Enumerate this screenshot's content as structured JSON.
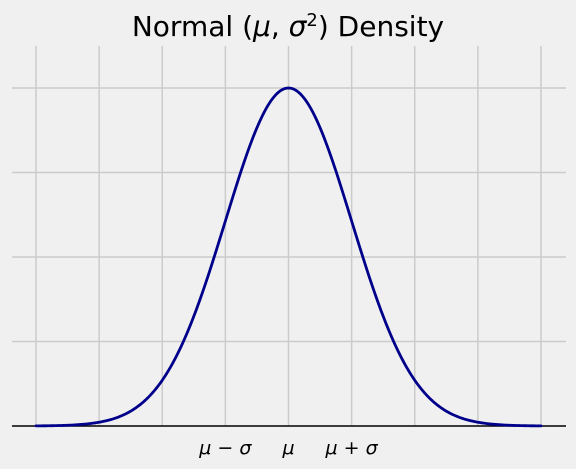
{
  "chart_data": {
    "type": "line",
    "title_main": "Normal (",
    "title_mu": "μ",
    "title_comma": ", ",
    "title_sigma": "σ",
    "title_sup": "2",
    "title_close": ") Density",
    "x_ticks": [
      {
        "value": -1,
        "label": "μ − σ"
      },
      {
        "value": 0,
        "label": "μ"
      },
      {
        "value": 1,
        "label": "μ + σ"
      }
    ],
    "x_grid": [
      -4,
      -3,
      -2,
      -1,
      0,
      1,
      2,
      3,
      4
    ],
    "xlim": [
      -4,
      4
    ],
    "y_grid": [
      0,
      0.1,
      0.2,
      0.3,
      0.4
    ],
    "ylim": [
      0,
      0.4
    ],
    "series": [
      {
        "function": "normal_pdf",
        "mean": 0,
        "std": 1,
        "x_range": [
          -4,
          4
        ]
      }
    ],
    "grid": true,
    "colors": {
      "curve": "#00008b",
      "background": "#f0f0f0",
      "grid": "#cbcbcb",
      "baseline": "#000000"
    }
  }
}
